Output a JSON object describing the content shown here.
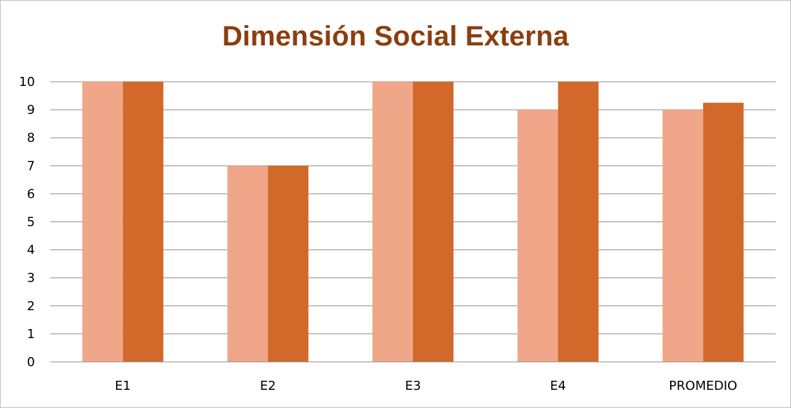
{
  "chart_data": {
    "type": "bar",
    "title": "Dimensión Social Externa",
    "categories": [
      "E1",
      "E2",
      "E3",
      "E4",
      "PROMEDIO"
    ],
    "series": [
      {
        "values": [
          10,
          7,
          10,
          9,
          9
        ],
        "color": "#f0a688"
      },
      {
        "values": [
          10,
          7,
          10,
          10,
          9.25
        ],
        "color": "#d2692a"
      }
    ],
    "yticks": [
      0,
      1,
      2,
      3,
      4,
      5,
      6,
      7,
      8,
      9,
      10
    ],
    "ylim": [
      0,
      10
    ],
    "grid": true,
    "legend": "none"
  }
}
